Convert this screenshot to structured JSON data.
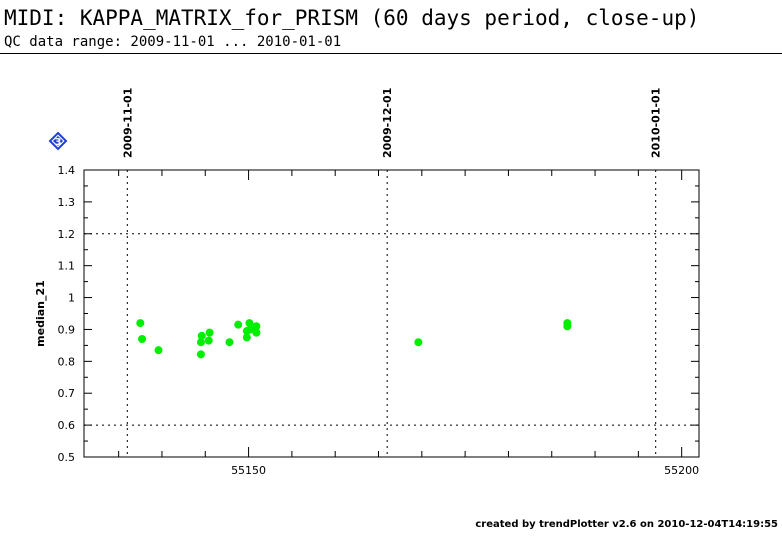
{
  "header": {
    "title": "MIDI: KAPPA_MATRIX_for_PRISM (60 days period, close-up)",
    "subtitle": "QC data range: 2009-11-01 ... 2010-01-01"
  },
  "footer": {
    "credit": "created by trendPlotter v2.6 on 2010-12-04T14:19:55"
  },
  "colors": {
    "points": "#00ee00",
    "marker_badge": "#1f3fd6"
  },
  "badge": {
    "icon": "diamond-3-icon",
    "label": "3"
  },
  "chart_data": {
    "type": "scatter",
    "title": "",
    "xlabel": "",
    "ylabel": "median_21",
    "xlim": [
      55131,
      55202
    ],
    "ylim": [
      0.5,
      1.4
    ],
    "yticks": [
      0.5,
      0.6,
      0.7,
      0.8,
      0.9,
      1,
      1.1,
      1.2,
      1.3,
      1.4
    ],
    "ytick_labels": [
      "0.5",
      "0.6",
      "0.7",
      "0.8",
      "0.9",
      "1",
      "1.1",
      "1.2",
      "1.3",
      "1.4"
    ],
    "xticks_labeled": [
      55150,
      55200
    ],
    "xtick_labels": [
      "55150",
      "55200"
    ],
    "x_minor_step": 5,
    "y_grid_dotted": [
      0.6,
      1.2
    ],
    "date_markers": [
      {
        "x": 55136,
        "label": "2009-11-01"
      },
      {
        "x": 55166,
        "label": "2009-12-01"
      },
      {
        "x": 55197,
        "label": "2010-01-01"
      }
    ],
    "grid": false,
    "series": [
      {
        "x": [
          55137.5,
          55137.7,
          55139.6,
          55144.5,
          55144.5,
          55144.6,
          55145.4,
          55145.5,
          55147.8,
          55148.8,
          55149.8,
          55149.8,
          55150.1,
          55150.2,
          55150.9,
          55150.9,
          55169.6,
          55186.8,
          55186.8
        ],
        "values": [
          0.92,
          0.87,
          0.835,
          0.822,
          0.86,
          0.88,
          0.865,
          0.89,
          0.86,
          0.915,
          0.875,
          0.895,
          0.92,
          0.9,
          0.89,
          0.91,
          0.86,
          0.92,
          0.91
        ]
      }
    ]
  }
}
